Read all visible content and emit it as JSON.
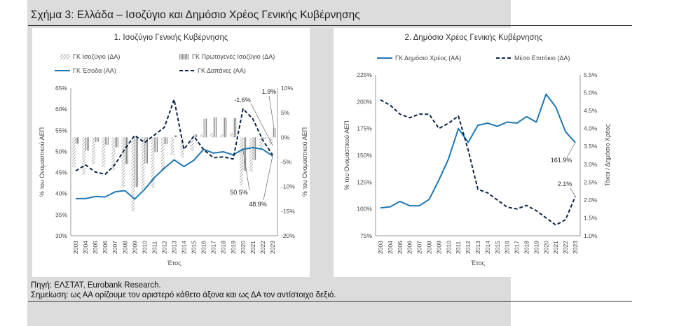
{
  "figure_title": "Σχήμα 3: Ελλάδα – Ισοζύγιο και Δημόσιο Χρέος Γενικής Κυβέρνησης",
  "source": "Πηγή: ΕΛΣΤΑΤ, Eurobank Research.",
  "note": "Σημείωση: ως ΑΑ ορίζουμε τον αριστερό κάθετο άξονα και ως ΔΑ τον αντίστοιχο δεξιό.",
  "colors": {
    "blue": "#1f77b4",
    "navy": "#0b2447",
    "bar": "#9b9b9b",
    "grid": "#dddddd"
  },
  "chart_data": [
    {
      "type": "bar",
      "title": "1. Ισοζύγιο Γενικής Κυβέρνησης",
      "x": [
        2003,
        2004,
        2005,
        2006,
        2007,
        2008,
        2009,
        2010,
        2011,
        2012,
        2013,
        2014,
        2015,
        2016,
        2017,
        2018,
        2019,
        2020,
        2021,
        2022,
        2023
      ],
      "xlabel": "Έτος",
      "ylabel_left": "% του Ονομαστικού ΑΕΠ",
      "ylabel_right": "% του Ονομαστικού ΑΕΠ",
      "ylim_left": [
        30,
        65
      ],
      "ylim_right": [
        -20,
        10
      ],
      "yticks_left": [
        "30%",
        "35%",
        "40%",
        "45%",
        "50%",
        "55%",
        "60%",
        "65%"
      ],
      "yticks_right": [
        "-20%",
        "-15%",
        "-10%",
        "-5%",
        "0%",
        "5%",
        "10%"
      ],
      "legend": [
        "ΓΚ Ισοζύγιο (ΔΑ)",
        "ΓΚ Πρωτογενές Ισοζύγιο (ΔΑ)",
        "ΓΚ Έσοδα (ΑΑ)",
        "ΓΚ Δαπάνες (ΑΑ)"
      ],
      "grid": false,
      "series": [
        {
          "name": "ΓΚ Ισοζύγιο (ΔΑ)",
          "axis": "right",
          "kind": "bar-hatched",
          "values": [
            -6.1,
            -7.6,
            -5.5,
            -6.1,
            -6.7,
            -10.2,
            -15.1,
            -11.3,
            -10.3,
            -6.6,
            -3.6,
            -4.1,
            -2.8,
            0.6,
            0.9,
            0.6,
            0.9,
            -9.8,
            -7.0,
            -2.5,
            -1.6
          ]
        },
        {
          "name": "ΓΚ Πρωτογενές Ισοζύγιο (ΔΑ)",
          "axis": "right",
          "kind": "bar-striped",
          "values": [
            -1.3,
            -2.7,
            -0.9,
            -1.5,
            -2.0,
            -5.4,
            -10.1,
            -5.3,
            -3.0,
            -1.4,
            0.4,
            0.0,
            0.6,
            3.8,
            4.1,
            4.0,
            3.9,
            -6.8,
            -4.6,
            -0.3,
            1.9
          ]
        },
        {
          "name": "ΓΚ Έσοδα (ΑΑ)",
          "axis": "left",
          "kind": "line",
          "values": [
            38.8,
            38.8,
            39.3,
            39.2,
            40.4,
            40.7,
            38.7,
            41.0,
            43.8,
            46.0,
            48.0,
            46.4,
            47.9,
            50.5,
            49.6,
            49.9,
            49.2,
            50.5,
            50.9,
            50.5,
            48.9
          ]
        },
        {
          "name": "ΓΚ Δαπάνες (ΑΑ)",
          "axis": "left",
          "kind": "line-dashed",
          "values": [
            45.4,
            46.8,
            45.1,
            44.6,
            46.9,
            50.6,
            53.8,
            52.1,
            53.9,
            55.7,
            62.3,
            50.5,
            53.6,
            50.4,
            48.5,
            48.7,
            48.2,
            60.1,
            57.7,
            52.7,
            49.2
          ]
        }
      ],
      "annotations": [
        "-1.6%",
        "1.9%",
        "50.5%",
        "48.9%"
      ]
    },
    {
      "type": "line",
      "title": "2. Δημόσιο Χρέος Γενικής Κυβέρνησης",
      "x": [
        2003,
        2004,
        2005,
        2006,
        2007,
        2008,
        2009,
        2010,
        2011,
        2012,
        2013,
        2014,
        2015,
        2016,
        2017,
        2018,
        2019,
        2020,
        2021,
        2022,
        2023
      ],
      "xlabel": "Έτος",
      "ylabel_left": "% του Ονομαστικού ΑΕΠ",
      "ylabel_right": "Τόκοι / Δημόσιο Χρέος",
      "ylim_left": [
        75,
        225
      ],
      "ylim_right": [
        1.0,
        5.5
      ],
      "yticks_left": [
        "75%",
        "100%",
        "125%",
        "150%",
        "175%",
        "200%",
        "225%"
      ],
      "yticks_right": [
        "1.0%",
        "1.5%",
        "2.0%",
        "2.5%",
        "3.0%",
        "3.5%",
        "4.0%",
        "4.5%",
        "5.0%",
        "5.5%"
      ],
      "legend": [
        "ΓΚ Δημόσιο Χρέος (ΑΑ)",
        "Μέσο Επιτόκιο (ΔΑ)"
      ],
      "grid": false,
      "series": [
        {
          "name": "ΓΚ Δημόσιο Χρέος (ΑΑ)",
          "axis": "left",
          "kind": "line",
          "values": [
            101,
            102,
            107,
            103,
            103,
            109,
            127,
            147,
            175,
            162,
            178,
            180,
            177,
            181,
            180,
            186,
            181,
            207,
            195,
            172,
            161.9
          ]
        },
        {
          "name": "Μέσο Επιτόκιο (ΔΑ)",
          "axis": "right",
          "kind": "line-dashed",
          "values": [
            4.8,
            4.65,
            4.4,
            4.3,
            4.4,
            4.4,
            4.0,
            4.15,
            4.35,
            3.4,
            2.3,
            2.2,
            2.0,
            1.8,
            1.75,
            1.85,
            1.7,
            1.5,
            1.3,
            1.45,
            2.1
          ]
        }
      ],
      "annotations": [
        "161.9%",
        "2.1%"
      ]
    }
  ]
}
